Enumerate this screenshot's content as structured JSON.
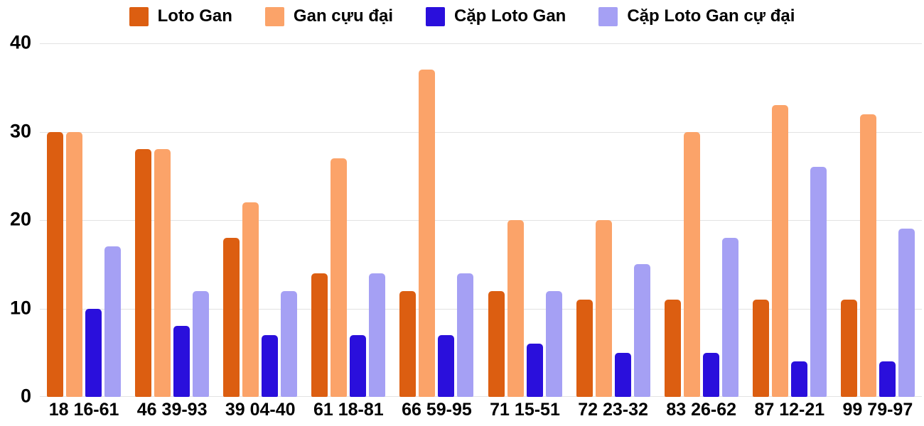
{
  "chart_data": {
    "type": "bar",
    "title": "",
    "xlabel": "",
    "ylabel": "",
    "categories": [
      "18 16-61",
      "46 39-93",
      "39 04-40",
      "61 18-81",
      "66 59-95",
      "71 15-51",
      "72 23-32",
      "83 26-62",
      "87 12-21",
      "99 79-97"
    ],
    "series": [
      {
        "name": "Loto Gan",
        "color": "#dc5e11",
        "values": [
          30,
          28,
          18,
          14,
          12,
          12,
          11,
          11,
          11,
          11
        ]
      },
      {
        "name": "Gan cựu đại",
        "color": "#fba369",
        "values": [
          30,
          28,
          22,
          27,
          37,
          20,
          20,
          30,
          33,
          32
        ]
      },
      {
        "name": "Cặp Loto Gan",
        "color": "#2a0fdc",
        "values": [
          10,
          8,
          7,
          7,
          7,
          6,
          5,
          5,
          4,
          4
        ]
      },
      {
        "name": "Cặp Loto Gan cự đại",
        "color": "#a5a0f4",
        "values": [
          17,
          12,
          12,
          14,
          14,
          12,
          15,
          18,
          26,
          19
        ]
      }
    ],
    "ylim": [
      0,
      40
    ],
    "yticks": [
      0,
      10,
      20,
      30,
      40
    ],
    "grid": "horizontal",
    "legend_position": "top",
    "colors": {
      "grid": "#e2e2e2",
      "text": "#000000",
      "background": "#ffffff"
    }
  }
}
